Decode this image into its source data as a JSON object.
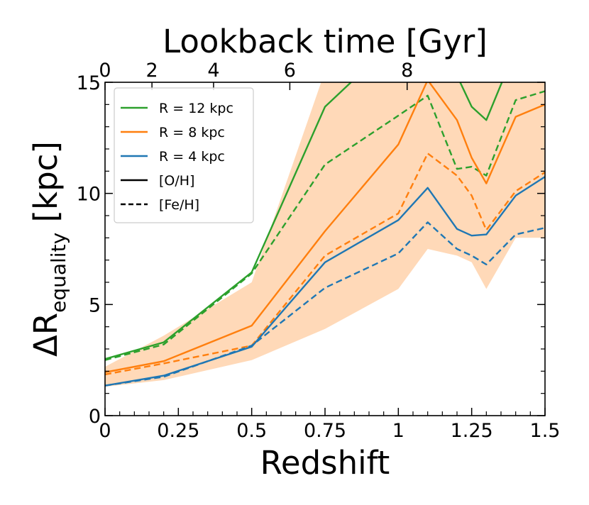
{
  "chart_data": {
    "type": "line",
    "top_axis_title": "Lookback time [Gyr]",
    "xlabel": "Redshift",
    "ylabel_main": "ΔR",
    "ylabel_sub": "equality",
    "ylabel_unit": "[kpc]",
    "xlim": [
      0,
      1.5
    ],
    "ylim": [
      0,
      15
    ],
    "x_ticks": [
      0,
      0.25,
      0.5,
      0.75,
      1,
      1.25,
      1.5
    ],
    "x_tick_labels": [
      "0",
      "0.25",
      "0.5",
      "0.75",
      "1",
      "1.25",
      "1.5"
    ],
    "y_ticks": [
      0,
      5,
      10,
      15
    ],
    "y_tick_labels": [
      "0",
      "5",
      "10",
      "15"
    ],
    "top_ticks": [
      {
        "z": 0.0,
        "label": "0"
      },
      {
        "z": 0.16,
        "label": "2"
      },
      {
        "z": 0.37,
        "label": "4"
      },
      {
        "z": 0.63,
        "label": "6"
      },
      {
        "z": 1.03,
        "label": "8"
      }
    ],
    "grid": false,
    "legend_position": "top-left",
    "legend": [
      {
        "label": "R = 12 kpc",
        "color": "#2ca02c",
        "style": "solid"
      },
      {
        "label": "R = 8 kpc",
        "color": "#ff7f0e",
        "style": "solid"
      },
      {
        "label": "R = 4 kpc",
        "color": "#1f77b4",
        "style": "solid"
      },
      {
        "label": "[O/H]",
        "color": "#000000",
        "style": "solid"
      },
      {
        "label": "[Fe/H]",
        "color": "#000000",
        "style": "dashed"
      }
    ],
    "x": [
      0,
      0.2,
      0.5,
      0.75,
      1.0,
      1.1,
      1.2,
      1.25,
      1.3,
      1.4,
      1.5
    ],
    "band": {
      "color": "#ffd9b8",
      "lower": [
        1.3,
        1.6,
        2.5,
        3.9,
        5.7,
        7.5,
        7.2,
        6.9,
        5.7,
        8.0,
        8.0
      ],
      "upper": [
        2.2,
        3.6,
        6.0,
        15.5,
        15.5,
        15.5,
        15.5,
        15.5,
        15.5,
        15.5,
        15.5
      ]
    },
    "series": [
      {
        "name": "R = 12 kpc [O/H]",
        "color": "#2ca02c",
        "style": "solid",
        "values": [
          2.55,
          3.3,
          6.45,
          13.9,
          17.0,
          18.0,
          15.3,
          13.9,
          13.3,
          16.5,
          17.5
        ]
      },
      {
        "name": "R = 12 kpc [Fe/H]",
        "color": "#2ca02c",
        "style": "dashed",
        "values": [
          2.5,
          3.2,
          6.4,
          11.3,
          13.5,
          14.4,
          11.1,
          11.2,
          10.8,
          14.2,
          14.6
        ]
      },
      {
        "name": "R = 8 kpc [O/H]",
        "color": "#ff7f0e",
        "style": "solid",
        "values": [
          1.95,
          2.45,
          4.05,
          8.3,
          12.2,
          15.1,
          13.3,
          11.6,
          10.45,
          13.45,
          14.0
        ]
      },
      {
        "name": "R = 8 kpc [Fe/H]",
        "color": "#ff7f0e",
        "style": "dashed",
        "values": [
          1.85,
          2.35,
          3.15,
          7.2,
          9.1,
          11.8,
          10.8,
          9.9,
          8.35,
          10.1,
          10.95
        ]
      },
      {
        "name": "R = 4 kpc [O/H]",
        "color": "#1f77b4",
        "style": "solid",
        "values": [
          1.35,
          1.8,
          3.1,
          6.9,
          8.8,
          10.25,
          8.4,
          8.1,
          8.15,
          9.9,
          10.75
        ]
      },
      {
        "name": "R = 4 kpc [Fe/H]",
        "color": "#1f77b4",
        "style": "dashed",
        "values": [
          1.35,
          1.75,
          3.15,
          5.75,
          7.3,
          8.7,
          7.5,
          7.2,
          6.8,
          8.15,
          8.45
        ]
      }
    ]
  }
}
